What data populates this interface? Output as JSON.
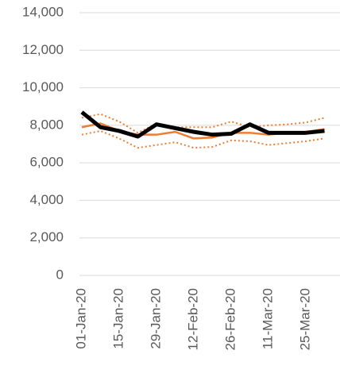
{
  "chart_data": {
    "type": "line",
    "categories": [
      "01-Jan-20",
      null,
      "15-Jan-20",
      null,
      "29-Jan-20",
      null,
      "12-Feb-20",
      null,
      "26-Feb-20",
      null,
      "11-Mar-20",
      null,
      "25-Mar-20",
      null
    ],
    "series": [
      {
        "color": "#ed7d31",
        "dash": "dotted",
        "width": 2,
        "values": [
          8400,
          8600,
          8200,
          7600,
          8100,
          7900,
          7900,
          7900,
          8200,
          7900,
          8000,
          8050,
          8150,
          8400
        ]
      },
      {
        "color": "#ed7d31",
        "dash": "dotted",
        "width": 2,
        "values": [
          7500,
          7700,
          7300,
          6800,
          6950,
          7100,
          6800,
          6850,
          7200,
          7150,
          6950,
          7050,
          7150,
          7300
        ]
      },
      {
        "color": "#ed7d31",
        "dash": "solid",
        "width": 2.5,
        "values": [
          7900,
          8100,
          7700,
          7500,
          7500,
          7650,
          7300,
          7350,
          7600,
          7600,
          7500,
          7600,
          7650,
          7800
        ]
      },
      {
        "color": "#000000",
        "dash": "solid",
        "width": 5,
        "values": [
          8700,
          7900,
          7700,
          7400,
          8050,
          7850,
          7650,
          7500,
          7550,
          8050,
          7600,
          7600,
          7600,
          7700
        ]
      }
    ],
    "ylim": [
      0,
      14000
    ],
    "yticks": [
      0,
      {
        "value": 2000,
        "label": "2,000"
      },
      {
        "value": 4000,
        "label": "4,000"
      },
      {
        "value": 6000,
        "label": "6,000"
      },
      {
        "value": 8000,
        "label": "8,000"
      },
      {
        "value": 10000,
        "label": "10,000"
      },
      {
        "value": 12000,
        "label": "12,000"
      },
      {
        "value": 14000,
        "label": "14,000"
      }
    ],
    "grid": true
  }
}
